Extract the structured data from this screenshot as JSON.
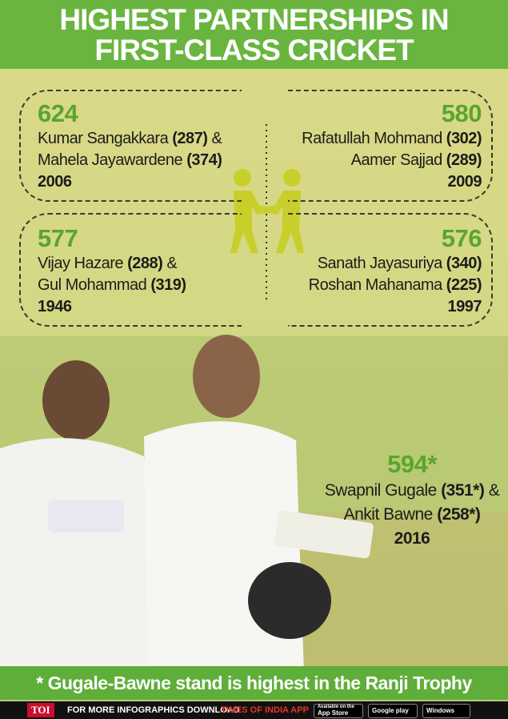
{
  "header": {
    "title_lines": [
      "HIGHEST PARTNERSHIPS IN",
      "FIRST-CLASS CRICKET"
    ]
  },
  "partnerships": [
    {
      "total": "624",
      "players": [
        {
          "name": "Kumar Sangakkara",
          "runs": "(287)",
          "joiner": "&"
        },
        {
          "name": "Mahela Jayawardene",
          "runs": "(374)"
        }
      ],
      "year": "2006"
    },
    {
      "total": "580",
      "players": [
        {
          "name": "Rafatullah Mohmand",
          "runs": "(302)"
        },
        {
          "name": "Aamer Sajjad",
          "runs": "(289)"
        }
      ],
      "year": "2009"
    },
    {
      "total": "577",
      "players": [
        {
          "name": "Vijay Hazare",
          "runs": "(288)",
          "joiner": "&"
        },
        {
          "name": "Gul Mohammad",
          "runs": "(319)"
        }
      ],
      "year": "1946"
    },
    {
      "total": "576",
      "players": [
        {
          "name": "Sanath Jayasuriya",
          "runs": "(340)"
        },
        {
          "name": "Roshan Mahanama",
          "runs": "(225)"
        }
      ],
      "year": "1997"
    },
    {
      "total": "594*",
      "players": [
        {
          "name": "Swapnil Gugale",
          "runs": "(351*)",
          "joiner": "&"
        },
        {
          "name": "Ankit Bawne",
          "runs": "(258*)"
        }
      ],
      "year": "2016"
    }
  ],
  "note": "* Gugale-Bawne stand is highest in the Ranji Trophy",
  "footer": {
    "brand": "TOI",
    "text": "FOR MORE  INFOGRAPHICS DOWNLOAD",
    "app": "TIMES OF INDIA APP",
    "badges": [
      {
        "small": "Available on the",
        "label": "App Store"
      },
      {
        "small": "",
        "label": "Google play"
      },
      {
        "small": "",
        "label": "Windows Phone"
      }
    ]
  }
}
